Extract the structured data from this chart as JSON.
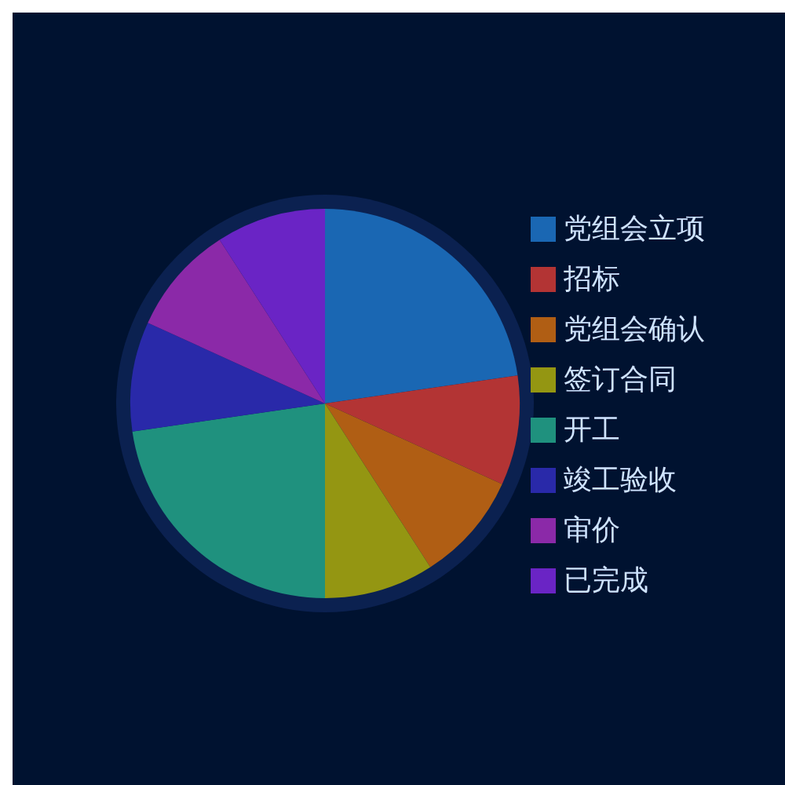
{
  "chart_data": {
    "type": "pie",
    "categories": [
      "党组会立项",
      "招标",
      "党组会确认",
      "签订合同",
      "开工",
      "竣工验收",
      "审价",
      "已完成"
    ],
    "values": [
      22.7,
      9.1,
      9.1,
      9.1,
      22.7,
      9.1,
      9.1,
      9.1
    ],
    "colors": [
      "#1a67b3",
      "#b33434",
      "#b05e14",
      "#949612",
      "#1f917e",
      "#2929a9",
      "#8b29a8",
      "#6a24c5"
    ],
    "legend": "right"
  }
}
